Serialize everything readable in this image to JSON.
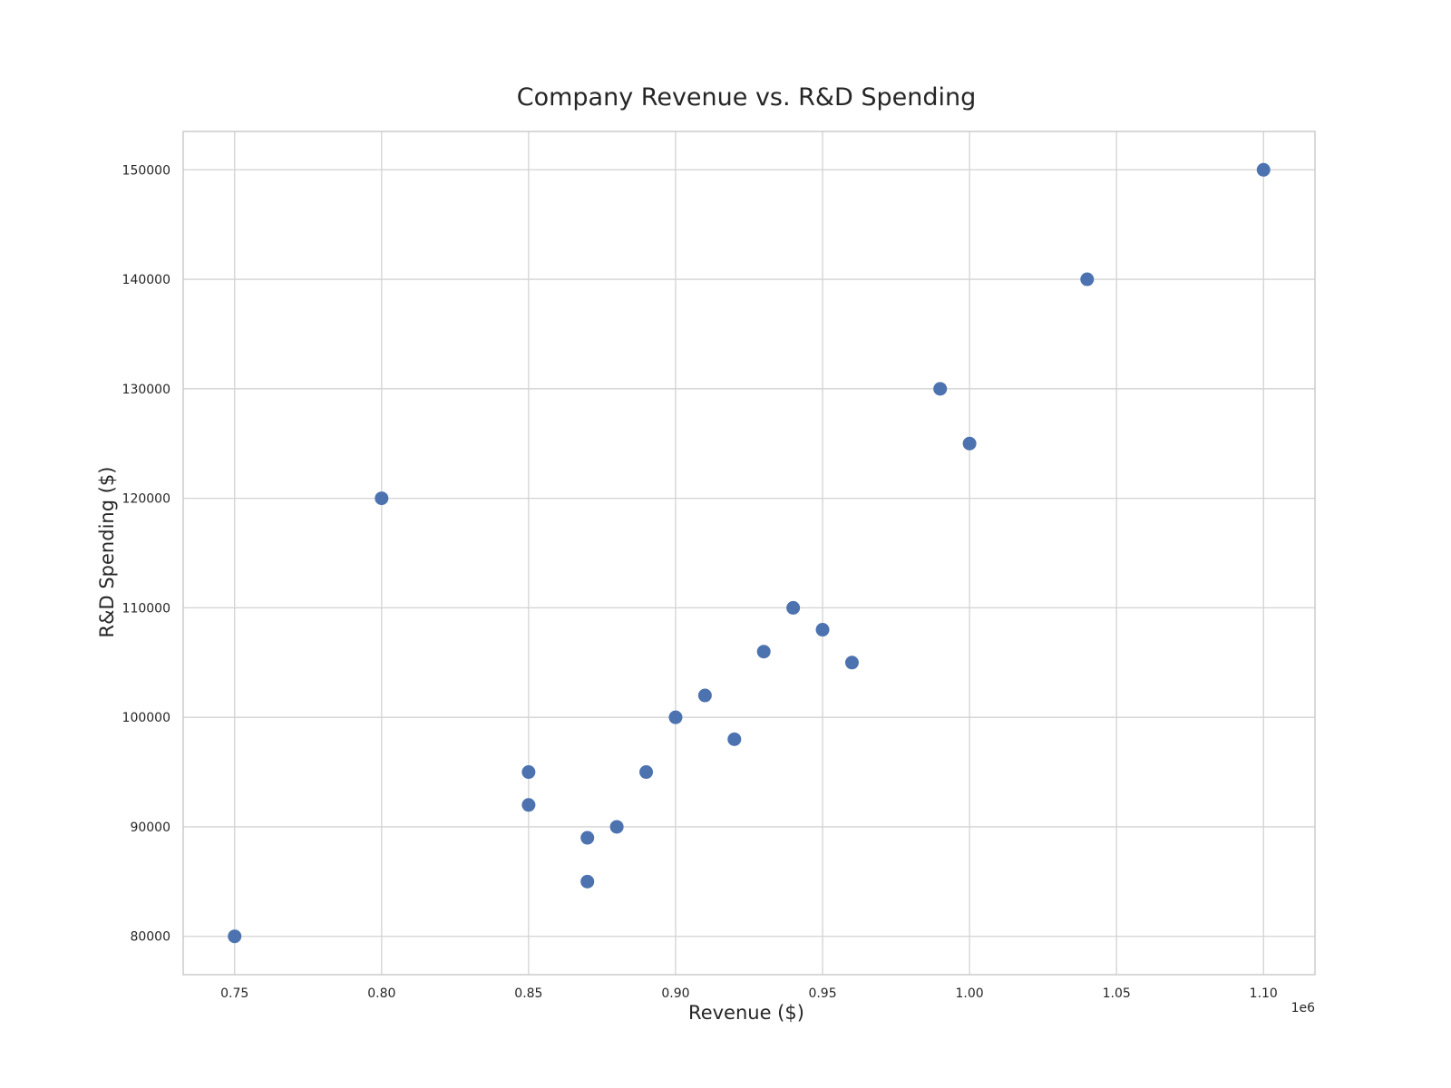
{
  "chart_data": {
    "type": "scatter",
    "title": "Company Revenue vs. R&D Spending",
    "xlabel": "Revenue ($)",
    "ylabel": "R&D Spending ($)",
    "x_offset_label": "1e6",
    "xlim": [
      732500,
      1117500
    ],
    "ylim": [
      76500,
      153500
    ],
    "x_ticks": [
      750000,
      800000,
      850000,
      900000,
      950000,
      1000000,
      1050000,
      1100000
    ],
    "x_tick_labels": [
      "0.75",
      "0.80",
      "0.85",
      "0.90",
      "0.95",
      "1.00",
      "1.05",
      "1.10"
    ],
    "y_ticks": [
      80000,
      90000,
      100000,
      110000,
      120000,
      130000,
      140000,
      150000
    ],
    "y_tick_labels": [
      "80000",
      "90000",
      "100000",
      "110000",
      "120000",
      "130000",
      "140000",
      "150000"
    ],
    "grid": true,
    "point_color": "#4c72b0",
    "points": [
      {
        "x": 750000,
        "y": 80000
      },
      {
        "x": 800000,
        "y": 120000
      },
      {
        "x": 850000,
        "y": 95000
      },
      {
        "x": 850000,
        "y": 92000
      },
      {
        "x": 870000,
        "y": 89000
      },
      {
        "x": 870000,
        "y": 85000
      },
      {
        "x": 880000,
        "y": 90000
      },
      {
        "x": 890000,
        "y": 95000
      },
      {
        "x": 900000,
        "y": 100000
      },
      {
        "x": 910000,
        "y": 102000
      },
      {
        "x": 920000,
        "y": 98000
      },
      {
        "x": 930000,
        "y": 106000
      },
      {
        "x": 940000,
        "y": 110000
      },
      {
        "x": 950000,
        "y": 108000
      },
      {
        "x": 960000,
        "y": 105000
      },
      {
        "x": 990000,
        "y": 130000
      },
      {
        "x": 1000000,
        "y": 125000
      },
      {
        "x": 1040000,
        "y": 140000
      },
      {
        "x": 1100000,
        "y": 150000
      }
    ]
  }
}
